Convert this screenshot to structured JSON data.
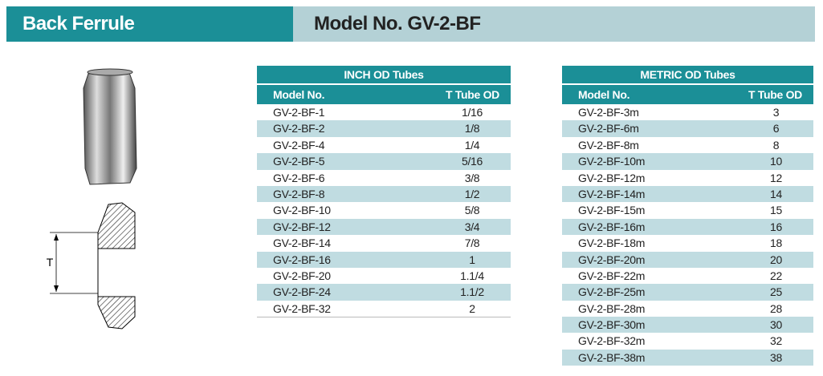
{
  "header": {
    "title": "Back Ferrule",
    "model": "Model No. GV-2-BF"
  },
  "drawing": {
    "dimension_label": "T"
  },
  "tables": [
    {
      "title": "INCH OD Tubes",
      "columns": [
        "Model No.",
        "T Tube OD"
      ],
      "rows": [
        [
          "GV-2-BF-1",
          "1/16"
        ],
        [
          "GV-2-BF-2",
          "1/8"
        ],
        [
          "GV-2-BF-4",
          "1/4"
        ],
        [
          "GV-2-BF-5",
          "5/16"
        ],
        [
          "GV-2-BF-6",
          "3/8"
        ],
        [
          "GV-2-BF-8",
          "1/2"
        ],
        [
          "GV-2-BF-10",
          "5/8"
        ],
        [
          "GV-2-BF-12",
          "3/4"
        ],
        [
          "GV-2-BF-14",
          "7/8"
        ],
        [
          "GV-2-BF-16",
          "1"
        ],
        [
          "GV-2-BF-20",
          "1.1/4"
        ],
        [
          "GV-2-BF-24",
          "1.1/2"
        ],
        [
          "GV-2-BF-32",
          "2"
        ]
      ]
    },
    {
      "title": "METRIC OD Tubes",
      "columns": [
        "Model No.",
        "T Tube OD"
      ],
      "rows": [
        [
          "GV-2-BF-3m",
          "3"
        ],
        [
          "GV-2-BF-6m",
          "6"
        ],
        [
          "GV-2-BF-8m",
          "8"
        ],
        [
          "GV-2-BF-10m",
          "10"
        ],
        [
          "GV-2-BF-12m",
          "12"
        ],
        [
          "GV-2-BF-14m",
          "14"
        ],
        [
          "GV-2-BF-15m",
          "15"
        ],
        [
          "GV-2-BF-16m",
          "16"
        ],
        [
          "GV-2-BF-18m",
          "18"
        ],
        [
          "GV-2-BF-20m",
          "20"
        ],
        [
          "GV-2-BF-22m",
          "22"
        ],
        [
          "GV-2-BF-25m",
          "25"
        ],
        [
          "GV-2-BF-28m",
          "28"
        ],
        [
          "GV-2-BF-30m",
          "30"
        ],
        [
          "GV-2-BF-32m",
          "32"
        ],
        [
          "GV-2-BF-38m",
          "38"
        ]
      ]
    }
  ]
}
